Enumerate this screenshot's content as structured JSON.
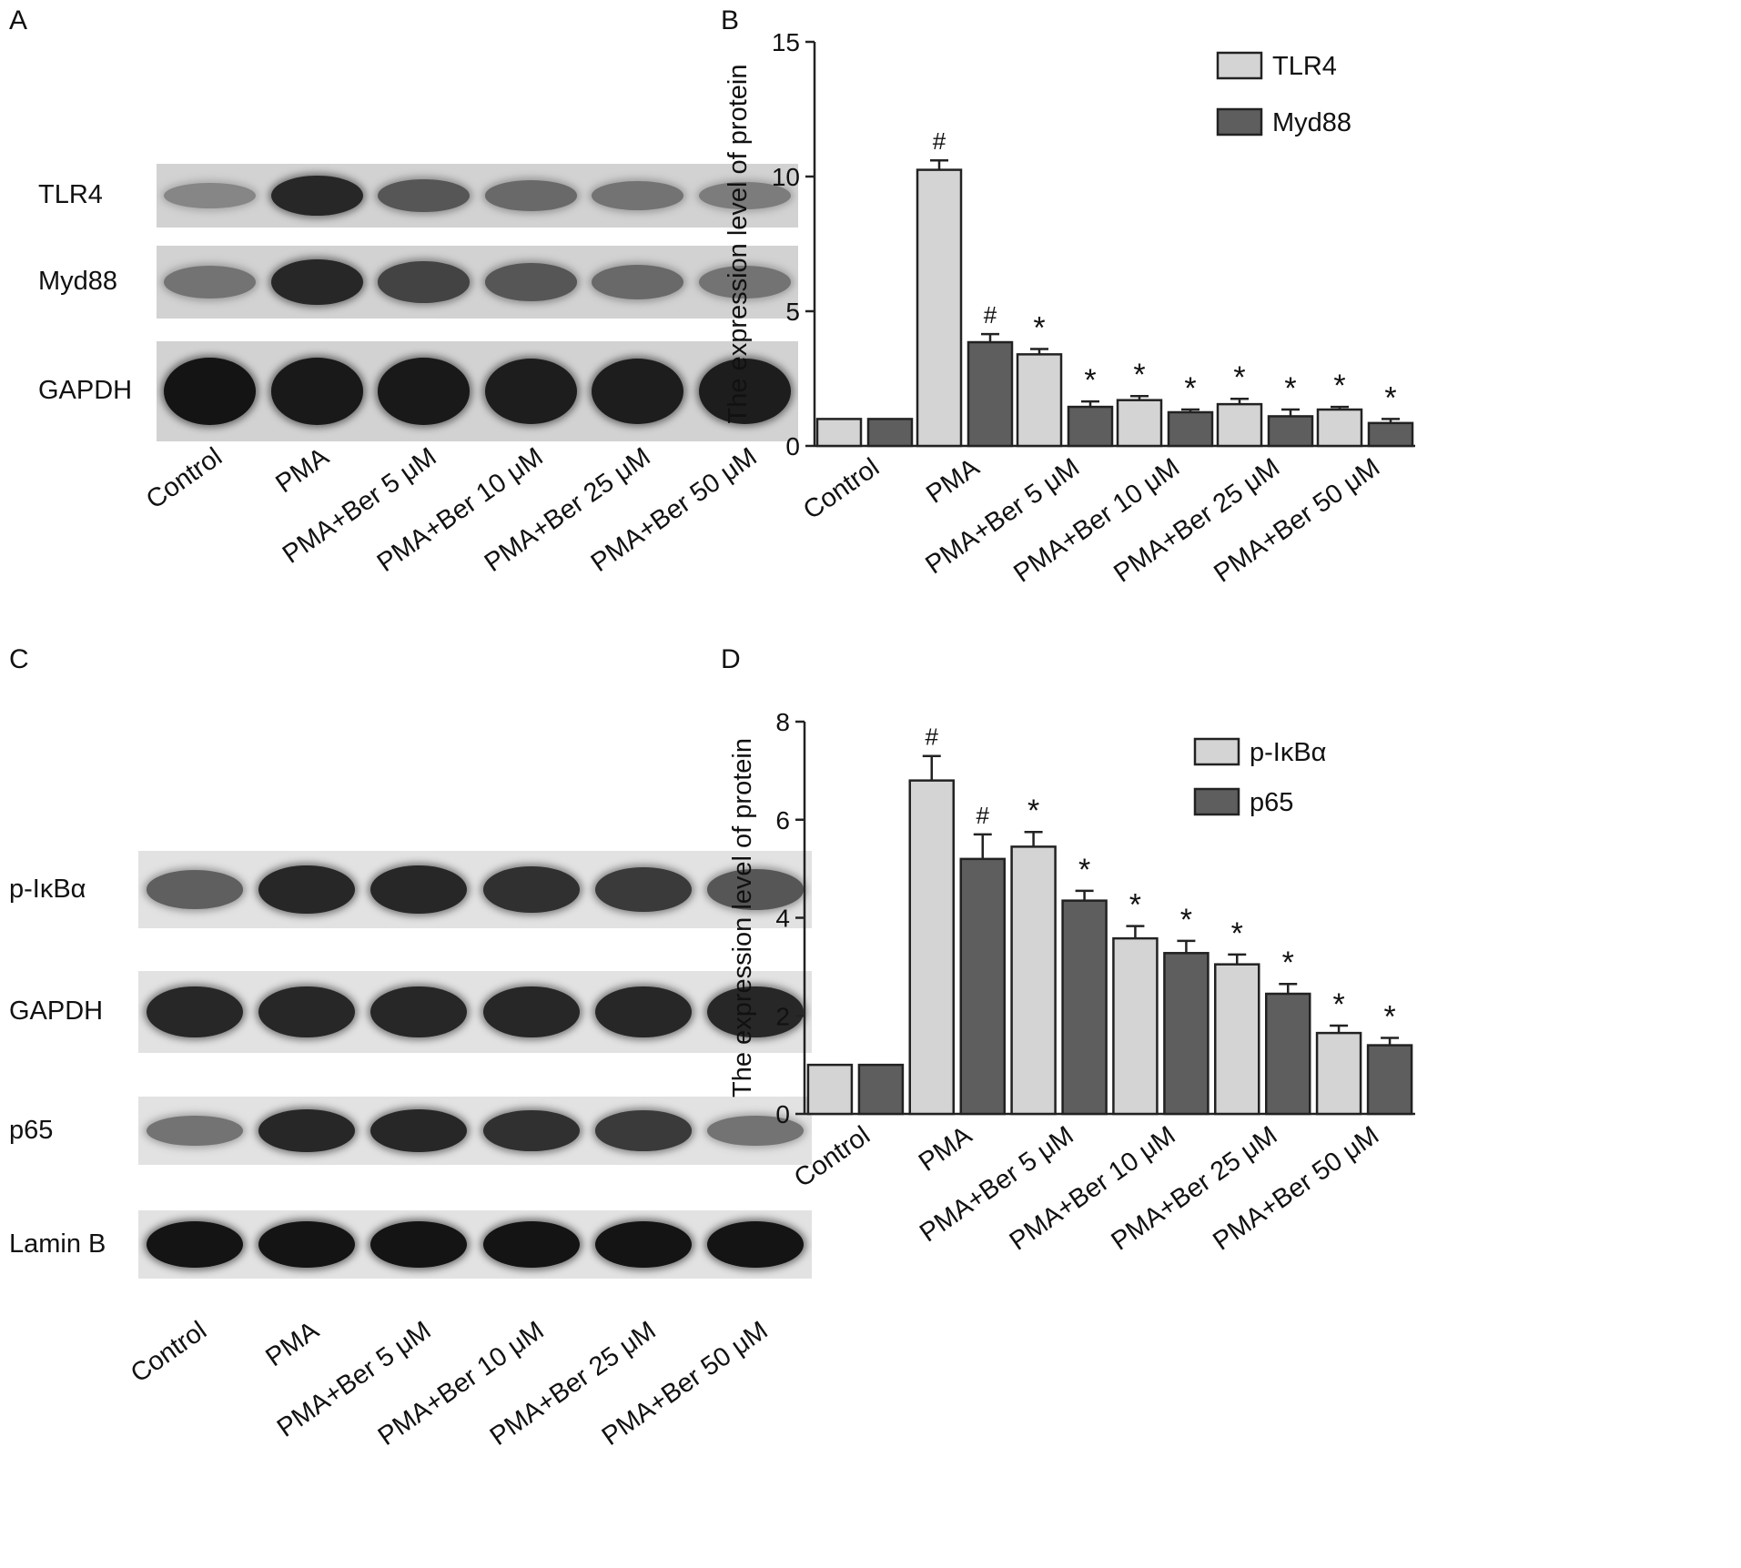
{
  "panels": {
    "a": "A",
    "b": "B",
    "c": "C",
    "d": "D"
  },
  "lanes": [
    "Control",
    "PMA",
    "PMA+Ber 5 μM",
    "PMA+Ber 10 μM",
    "PMA+Ber 25 μM",
    "PMA+Ber 50 μM"
  ],
  "blot_a": {
    "rows": [
      {
        "name": "TLR4",
        "intensities": [
          0.35,
          0.85,
          0.6,
          0.5,
          0.45,
          0.4
        ]
      },
      {
        "name": "Myd88",
        "intensities": [
          0.45,
          0.85,
          0.7,
          0.6,
          0.5,
          0.45
        ]
      },
      {
        "name": "GAPDH",
        "intensities": [
          0.95,
          0.92,
          0.92,
          0.9,
          0.9,
          0.9
        ]
      }
    ]
  },
  "blot_c": {
    "rows": [
      {
        "name": "p-IκBα",
        "intensities": [
          0.55,
          0.85,
          0.85,
          0.8,
          0.75,
          0.6
        ]
      },
      {
        "name": "GAPDH",
        "intensities": [
          0.85,
          0.85,
          0.85,
          0.85,
          0.85,
          0.85
        ]
      },
      {
        "name": "p65",
        "intensities": [
          0.45,
          0.85,
          0.85,
          0.8,
          0.75,
          0.45
        ]
      },
      {
        "name": "Lamin B",
        "intensities": [
          0.95,
          0.95,
          0.95,
          0.95,
          0.95,
          0.95
        ]
      }
    ]
  },
  "chart_data": [
    {
      "type": "bar",
      "panel": "B",
      "ylabel": "The expression level of protein",
      "ylim": [
        0,
        15
      ],
      "yticks": [
        0,
        5,
        10,
        15
      ],
      "categories": [
        "Control",
        "PMA",
        "PMA+Ber 5 μM",
        "PMA+Ber 10 μM",
        "PMA+Ber 25 μM",
        "PMA+Ber 50 μM"
      ],
      "series": [
        {
          "name": "TLR4",
          "color": "#d4d4d4",
          "values": [
            1.0,
            10.25,
            3.4,
            1.7,
            1.55,
            1.35
          ],
          "errors": [
            0,
            0.35,
            0.2,
            0.15,
            0.2,
            0.1
          ],
          "marks": [
            "",
            "#",
            "*",
            "*",
            "*",
            "*"
          ]
        },
        {
          "name": "Myd88",
          "color": "#5e5e5e",
          "values": [
            1.0,
            3.85,
            1.45,
            1.25,
            1.1,
            0.85
          ],
          "errors": [
            0,
            0.3,
            0.2,
            0.1,
            0.25,
            0.15
          ],
          "marks": [
            "",
            "#",
            "*",
            "*",
            "*",
            "*"
          ]
        }
      ],
      "legend": "top-right"
    },
    {
      "type": "bar",
      "panel": "D",
      "ylabel": "The expression level of protein",
      "ylim": [
        0,
        8
      ],
      "yticks": [
        0,
        2,
        4,
        6,
        8
      ],
      "categories": [
        "Control",
        "PMA",
        "PMA+Ber 5 μM",
        "PMA+Ber 10 μM",
        "PMA+Ber 25 μM",
        "PMA+Ber 50 μM"
      ],
      "series": [
        {
          "name": "p-IκBα",
          "color": "#d4d4d4",
          "values": [
            1.0,
            6.8,
            5.45,
            3.58,
            3.05,
            1.65
          ],
          "errors": [
            0,
            0.5,
            0.3,
            0.25,
            0.2,
            0.15
          ],
          "marks": [
            "",
            "#",
            "*",
            "*",
            "*",
            "*"
          ]
        },
        {
          "name": "p65",
          "color": "#5e5e5e",
          "values": [
            1.0,
            5.2,
            4.35,
            3.28,
            2.45,
            1.4
          ],
          "errors": [
            0,
            0.5,
            0.2,
            0.25,
            0.2,
            0.15
          ],
          "marks": [
            "",
            "#",
            "*",
            "*",
            "*",
            "*"
          ]
        }
      ],
      "legend": "top-right"
    }
  ]
}
